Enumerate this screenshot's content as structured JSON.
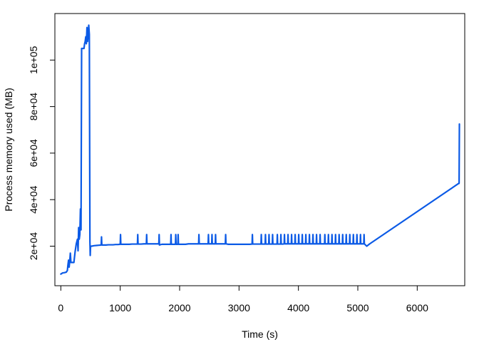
{
  "chart_data": {
    "type": "line",
    "title": "",
    "xlabel": "Time (s)",
    "ylabel": "Process memory used (MB)",
    "xlim": [
      -100,
      6800
    ],
    "ylim": [
      3000,
      120000
    ],
    "x_ticks": [
      0,
      1000,
      2000,
      3000,
      4000,
      5000,
      6000
    ],
    "x_tick_labels": [
      "0",
      "1000",
      "2000",
      "3000",
      "4000",
      "5000",
      "6000"
    ],
    "y_ticks": [
      20000,
      40000,
      60000,
      80000,
      100000
    ],
    "y_tick_labels": [
      "2e+04",
      "4e+04",
      "6e+04",
      "8e+04",
      "1e+05"
    ],
    "grid": false,
    "legend": "none",
    "line_color": "#0b5ae6",
    "series": [
      {
        "x": [
          0,
          30,
          60,
          90,
          110,
          120,
          130,
          140,
          150,
          160,
          170,
          180,
          200,
          220,
          240,
          260,
          280,
          290,
          300,
          310,
          320,
          330,
          340,
          350,
          360,
          370,
          380,
          390,
          400,
          410,
          420,
          430,
          440,
          450,
          460,
          470,
          480,
          490,
          495,
          500,
          510,
          520,
          560,
          600,
          640,
          680,
          685,
          690,
          720,
          760,
          800,
          840,
          880,
          920,
          960,
          1000,
          1005,
          1010,
          1050,
          1100,
          1150,
          1200,
          1250,
          1290,
          1295,
          1300,
          1350,
          1400,
          1440,
          1445,
          1450,
          1500,
          1550,
          1600,
          1650,
          1655,
          1660,
          1700,
          1750,
          1800,
          1850,
          1855,
          1860,
          1900,
          1930,
          1935,
          1940,
          1970,
          1975,
          1980,
          2020,
          2060,
          2100,
          2150,
          2200,
          2250,
          2300,
          2320,
          2325,
          2330,
          2380,
          2420,
          2460,
          2480,
          2485,
          2490,
          2520,
          2540,
          2545,
          2550,
          2580,
          2600,
          2605,
          2610,
          2650,
          2700,
          2750,
          2770,
          2775,
          2780,
          2820,
          2880,
          2940,
          3000,
          3060,
          3120,
          3180,
          3220,
          3225,
          3230,
          3280,
          3330,
          3370,
          3375,
          3380,
          3420,
          3440,
          3445,
          3450,
          3480,
          3500,
          3505,
          3510,
          3540,
          3560,
          3565,
          3570,
          3600,
          3640,
          3645,
          3650,
          3680,
          3700,
          3705,
          3710,
          3740,
          3760,
          3765,
          3770,
          3800,
          3820,
          3825,
          3830,
          3860,
          3880,
          3885,
          3890,
          3920,
          3940,
          3945,
          3950,
          3980,
          4000,
          4005,
          4010,
          4040,
          4060,
          4065,
          4070,
          4100,
          4120,
          4125,
          4130,
          4160,
          4180,
          4185,
          4190,
          4220,
          4240,
          4245,
          4250,
          4280,
          4300,
          4305,
          4310,
          4340,
          4360,
          4365,
          4370,
          4400,
          4440,
          4445,
          4450,
          4480,
          4500,
          4505,
          4510,
          4540,
          4560,
          4565,
          4570,
          4600,
          4620,
          4625,
          4630,
          4660,
          4680,
          4685,
          4690,
          4720,
          4740,
          4745,
          4750,
          4780,
          4800,
          4805,
          4810,
          4840,
          4860,
          4865,
          4870,
          4900,
          4920,
          4925,
          4930,
          4960,
          4980,
          4985,
          4990,
          5020,
          5040,
          5045,
          5050,
          5080,
          5100,
          5105,
          5110,
          5150,
          5200,
          6700,
          6705,
          6710
        ],
        "y": [
          8000,
          8500,
          8600,
          8800,
          9500,
          12000,
          14000,
          11000,
          13500,
          17000,
          13000,
          13000,
          13000,
          13000,
          17500,
          21000,
          23000,
          18000,
          28000,
          23000,
          25000,
          36000,
          27000,
          105000,
          105000,
          105000,
          105000,
          105000,
          107000,
          108000,
          110000,
          107000,
          114000,
          108000,
          111000,
          115000,
          111000,
          22000,
          16000,
          20000,
          20000,
          20000,
          20200,
          20300,
          20400,
          20500,
          24000,
          20500,
          20500,
          20500,
          20600,
          20600,
          20600,
          20700,
          20700,
          20800,
          25000,
          20800,
          20800,
          20800,
          20800,
          20900,
          20900,
          20900,
          25000,
          20900,
          20900,
          21000,
          21000,
          25000,
          21000,
          21000,
          21000,
          21000,
          21000,
          25000,
          20500,
          20800,
          20800,
          20800,
          20800,
          25000,
          20800,
          20800,
          20800,
          25000,
          20800,
          20800,
          25000,
          20800,
          20800,
          20800,
          20800,
          21000,
          21000,
          21000,
          21000,
          21000,
          25000,
          21000,
          21000,
          21000,
          21000,
          21000,
          25000,
          21000,
          21000,
          21000,
          25000,
          21000,
          21000,
          21000,
          25000,
          21000,
          21000,
          21000,
          21000,
          21000,
          25000,
          21000,
          20800,
          20800,
          20800,
          20800,
          20800,
          20800,
          20800,
          20900,
          25000,
          20900,
          20900,
          20900,
          20900,
          25000,
          20900,
          20900,
          20900,
          25000,
          20900,
          20900,
          20900,
          25000,
          20900,
          20900,
          20900,
          25000,
          20900,
          20900,
          20900,
          25000,
          20900,
          20900,
          20900,
          25000,
          20900,
          20900,
          21000,
          25000,
          21000,
          21000,
          21000,
          25000,
          21000,
          21000,
          21000,
          25000,
          21000,
          21000,
          21000,
          25000,
          21000,
          21000,
          21000,
          25000,
          21000,
          21000,
          21000,
          25000,
          21000,
          21000,
          21000,
          25000,
          21000,
          21000,
          21000,
          25000,
          21000,
          21000,
          21000,
          25000,
          21000,
          21000,
          21000,
          25000,
          21000,
          21000,
          21000,
          25000,
          21000,
          21000,
          21000,
          25000,
          21000,
          21000,
          21000,
          25000,
          21000,
          21000,
          21000,
          25000,
          21000,
          21000,
          21000,
          25000,
          21000,
          21000,
          21000,
          25000,
          21000,
          21000,
          21000,
          25000,
          21000,
          21000,
          21000,
          25000,
          21000,
          21000,
          21000,
          25000,
          21000,
          21000,
          21000,
          25000,
          21000,
          21000,
          21000,
          25000,
          21000,
          21000,
          21000,
          25000,
          21000,
          21000,
          21000,
          25000,
          21000,
          20000,
          21000,
          47000,
          47000,
          72500
        ]
      }
    ]
  }
}
